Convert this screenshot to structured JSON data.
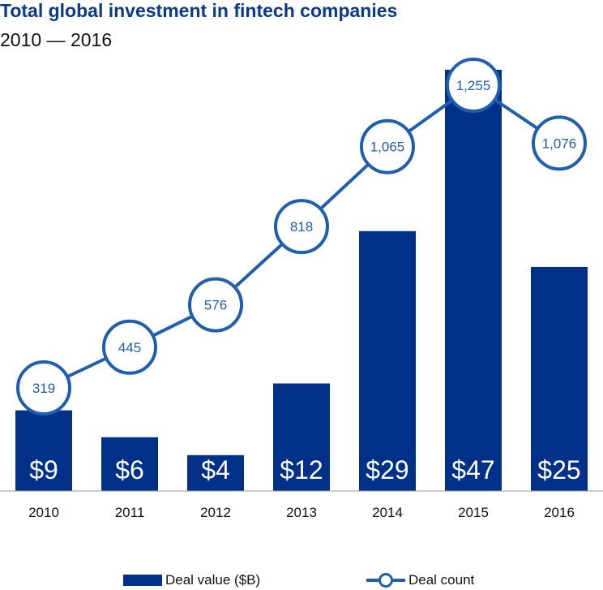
{
  "chart_data": {
    "type": "bar",
    "title": "Total global investment in fintech companies",
    "subtitle": "2010 — 2016",
    "categories": [
      "2010",
      "2011",
      "2012",
      "2013",
      "2014",
      "2015",
      "2016"
    ],
    "series": [
      {
        "name": "Deal value ($B)",
        "type": "bar",
        "values": [
          9,
          6,
          4,
          12,
          29,
          47,
          25
        ],
        "labels": [
          "$9",
          "$6",
          "$4",
          "$12",
          "$29",
          "$47",
          "$25"
        ],
        "color": "#003087"
      },
      {
        "name": "Deal count",
        "type": "line",
        "values": [
          319,
          445,
          576,
          818,
          1065,
          1255,
          1076
        ],
        "labels": [
          "319",
          "445",
          "576",
          "818",
          "1,065",
          "1,255",
          "1,076"
        ],
        "color": "#1f5fae"
      }
    ],
    "legend_position": "bottom",
    "grid": false
  }
}
